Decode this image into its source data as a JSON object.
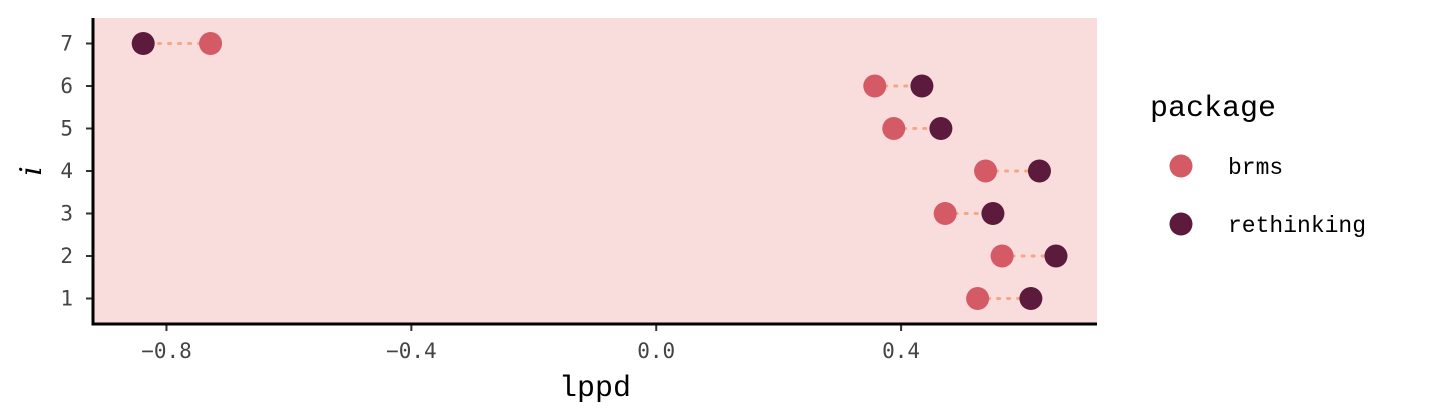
{
  "chart_data": {
    "type": "scatter",
    "subtype": "dumbbell",
    "title": "",
    "xlabel": "lppd",
    "ylabel": "i",
    "xlim": [
      -0.92,
      0.72
    ],
    "ylim": [
      0.4,
      7.6
    ],
    "x_ticks": [
      -0.8,
      -0.4,
      0.0,
      0.4
    ],
    "x_tick_labels": [
      "-0.8",
      "-0.4",
      "0.0",
      "0.4"
    ],
    "y_ticks": [
      1,
      2,
      3,
      4,
      5,
      6,
      7
    ],
    "y_tick_labels": [
      "1",
      "2",
      "3",
      "4",
      "5",
      "6",
      "7"
    ],
    "grid": false,
    "panel_background": "#f9dcdc",
    "segment_color": "#f4a882",
    "legend": {
      "title": "package",
      "position": "right",
      "entries": [
        {
          "name": "brms",
          "color": "#d45a65"
        },
        {
          "name": "rethinking",
          "color": "#5c1a3c"
        }
      ]
    },
    "series": [
      {
        "name": "brms",
        "color": "#d45a65",
        "points": [
          {
            "i": 1,
            "lppd": 0.525
          },
          {
            "i": 2,
            "lppd": 0.565
          },
          {
            "i": 3,
            "lppd": 0.472
          },
          {
            "i": 4,
            "lppd": 0.538
          },
          {
            "i": 5,
            "lppd": 0.388
          },
          {
            "i": 6,
            "lppd": 0.357
          },
          {
            "i": 7,
            "lppd": -0.728
          }
        ]
      },
      {
        "name": "rethinking",
        "color": "#5c1a3c",
        "points": [
          {
            "i": 1,
            "lppd": 0.612
          },
          {
            "i": 2,
            "lppd": 0.653
          },
          {
            "i": 3,
            "lppd": 0.55
          },
          {
            "i": 4,
            "lppd": 0.626
          },
          {
            "i": 5,
            "lppd": 0.465
          },
          {
            "i": 6,
            "lppd": 0.434
          },
          {
            "i": 7,
            "lppd": -0.838
          }
        ]
      }
    ]
  }
}
